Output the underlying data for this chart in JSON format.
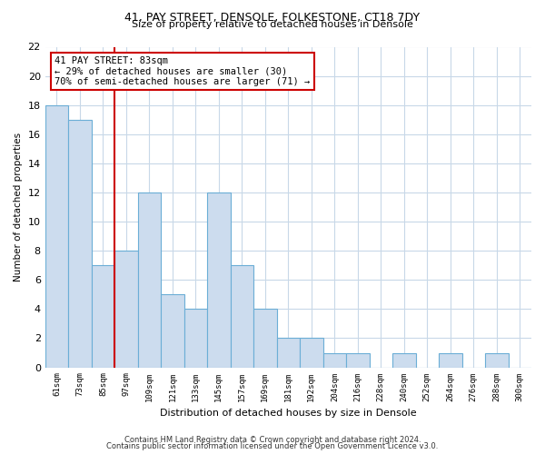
{
  "title": "41, PAY STREET, DENSOLE, FOLKESTONE, CT18 7DY",
  "subtitle": "Size of property relative to detached houses in Densole",
  "xlabel": "Distribution of detached houses by size in Densole",
  "ylabel": "Number of detached properties",
  "categories": [
    "61sqm",
    "73sqm",
    "85sqm",
    "97sqm",
    "109sqm",
    "121sqm",
    "133sqm",
    "145sqm",
    "157sqm",
    "169sqm",
    "181sqm",
    "192sqm",
    "204sqm",
    "216sqm",
    "228sqm",
    "240sqm",
    "252sqm",
    "264sqm",
    "276sqm",
    "288sqm",
    "300sqm"
  ],
  "values": [
    18,
    17,
    7,
    8,
    12,
    5,
    4,
    12,
    7,
    4,
    2,
    2,
    1,
    1,
    0,
    1,
    0,
    1,
    0,
    1,
    0
  ],
  "bar_color": "#ccdcee",
  "bar_edge_color": "#6baed6",
  "red_line_x": 2.5,
  "annotation_text": "41 PAY STREET: 83sqm\n← 29% of detached houses are smaller (30)\n70% of semi-detached houses are larger (71) →",
  "annotation_box_color": "#ffffff",
  "annotation_box_edge_color": "#cc0000",
  "ylim": [
    0,
    22
  ],
  "yticks": [
    0,
    2,
    4,
    6,
    8,
    10,
    12,
    14,
    16,
    18,
    20,
    22
  ],
  "footer1": "Contains HM Land Registry data © Crown copyright and database right 2024.",
  "footer2": "Contains public sector information licensed under the Open Government Licence v3.0.",
  "bg_color": "#ffffff",
  "grid_color": "#c8d8e8",
  "title_fontsize": 9,
  "subtitle_fontsize": 8,
  "footer_fontsize": 6
}
